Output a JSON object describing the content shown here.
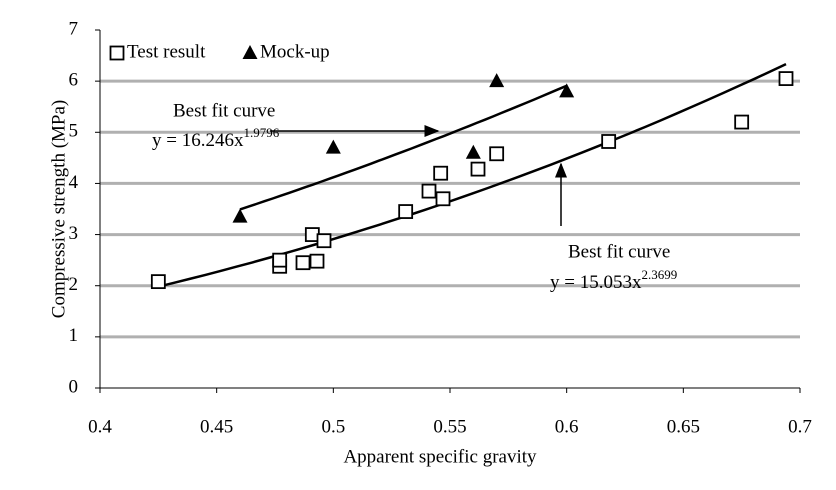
{
  "chart_data": {
    "type": "scatter",
    "xlabel": "Apparent specific gravity",
    "ylabel": "Compressive strength (MPa)",
    "xlim": [
      0.4,
      0.7
    ],
    "xticks": [
      0.4,
      0.45,
      0.5,
      0.55,
      0.6,
      0.65,
      0.7
    ],
    "ylim": [
      0,
      7
    ],
    "yticks": [
      0,
      1,
      2,
      3,
      4,
      5,
      6,
      7
    ],
    "grid": true,
    "legend": "top-left",
    "series": [
      {
        "name": "Test result",
        "marker": "square",
        "color": "#000000",
        "x": [
          0.425,
          0.477,
          0.477,
          0.487,
          0.491,
          0.493,
          0.496,
          0.531,
          0.541,
          0.546,
          0.547,
          0.562,
          0.57,
          0.618,
          0.675,
          0.694
        ],
        "values": [
          2.08,
          2.38,
          2.5,
          2.45,
          3.0,
          2.48,
          2.88,
          3.45,
          3.85,
          4.2,
          3.7,
          4.28,
          4.58,
          4.82,
          5.2,
          6.05
        ]
      },
      {
        "name": "Mock-up",
        "marker": "triangle",
        "color": "#000000",
        "x": [
          0.46,
          0.5,
          0.56,
          0.57,
          0.6
        ],
        "values": [
          3.35,
          4.7,
          4.6,
          6.0,
          5.8
        ]
      }
    ],
    "fits": [
      {
        "label": "Best fit curve",
        "equation": "y = 16.246x",
        "exponent_label": "1.9796",
        "a": 16.246,
        "b": 1.9796,
        "x_range": [
          0.46,
          0.6
        ]
      },
      {
        "label": "Best fit curve",
        "equation": "y = 15.053x",
        "exponent_label": "2.3699",
        "a": 15.053,
        "b": 2.3699,
        "x_range": [
          0.425,
          0.694
        ]
      }
    ]
  }
}
